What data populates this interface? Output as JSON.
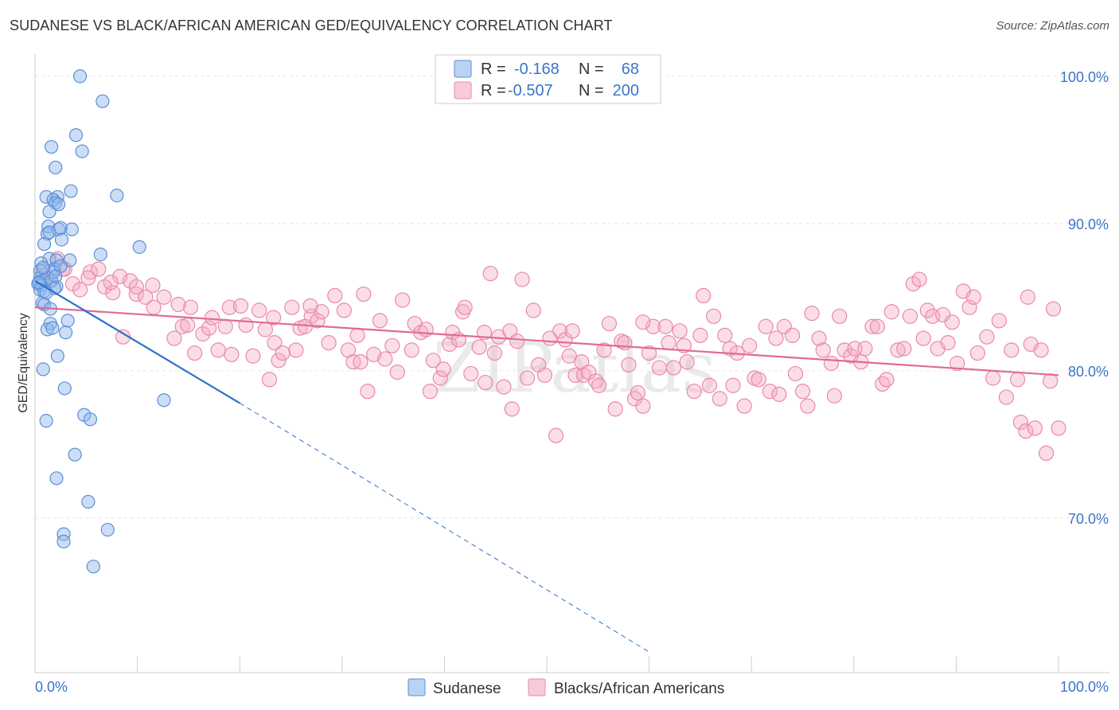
{
  "header": {
    "title": "SUDANESE VS BLACK/AFRICAN AMERICAN GED/EQUIVALENCY CORRELATION CHART",
    "source": "Source: ZipAtlas.com"
  },
  "colors": {
    "sudanese": "#8db6ea",
    "sudanese_stroke": "#5b8fd6",
    "sudanese_line": "#2f6fcc",
    "black": "#f4a9c2",
    "black_stroke": "#e88aa8",
    "black_line": "#e06b94",
    "tick": "#3b74c8",
    "grid": "#e5e5e5"
  },
  "watermark": "ZIPatlas",
  "chart_data": {
    "type": "scatter",
    "title": "SUDANESE VS BLACK/AFRICAN AMERICAN GED/EQUIVALENCY CORRELATION CHART",
    "xlabel": "",
    "ylabel": "GED/Equivalency",
    "xlim": [
      0,
      100
    ],
    "ylim": [
      59.5,
      101.5
    ],
    "x_tick_labels": [
      "0.0%",
      "100.0%"
    ],
    "y_ticks": [
      70,
      80,
      90,
      100
    ],
    "y_tick_labels": [
      "70.0%",
      "80.0%",
      "90.0%",
      "100.0%"
    ],
    "grid": true,
    "legend_position": "top-center",
    "legend": [
      {
        "r_label": "R =",
        "r_value": "-0.168",
        "n_label": "N =",
        "n_value": "68"
      },
      {
        "r_label": "R =",
        "r_value": "-0.507",
        "n_label": "N =",
        "n_value": "200"
      }
    ],
    "series": [
      {
        "name": "Sudanese",
        "trend": {
          "x": [
            0,
            20
          ],
          "y": [
            86.1,
            77.8
          ],
          "dashed_to": [
            60,
            60.9
          ]
        },
        "points": [
          [
            4.4,
            100
          ],
          [
            6.6,
            98.3
          ],
          [
            4,
            96
          ],
          [
            1.6,
            95.2
          ],
          [
            4.6,
            94.9
          ],
          [
            2,
            93.8
          ],
          [
            8,
            91.9
          ],
          [
            3.5,
            92.2
          ],
          [
            1.1,
            91.8
          ],
          [
            2.2,
            91.8
          ],
          [
            1.8,
            91.6
          ],
          [
            2,
            91.4
          ],
          [
            2.3,
            91.3
          ],
          [
            1.4,
            90.8
          ],
          [
            1.3,
            89.8
          ],
          [
            3.6,
            89.6
          ],
          [
            2.3,
            89.6
          ],
          [
            1.2,
            89.3
          ],
          [
            1.4,
            89.4
          ],
          [
            2.5,
            89.7
          ],
          [
            2.6,
            88.9
          ],
          [
            0.9,
            88.6
          ],
          [
            10.2,
            88.4
          ],
          [
            6.4,
            87.9
          ],
          [
            1.4,
            87.6
          ],
          [
            2.1,
            87.5
          ],
          [
            3.4,
            87.5
          ],
          [
            0.6,
            87.3
          ],
          [
            0.5,
            86.8
          ],
          [
            1.9,
            86.9
          ],
          [
            0.5,
            86.3
          ],
          [
            0.7,
            86.1
          ],
          [
            1.2,
            86.3
          ],
          [
            1.6,
            86.1
          ],
          [
            0.3,
            85.9
          ],
          [
            0.6,
            85.8
          ],
          [
            2.1,
            85.7
          ],
          [
            0.5,
            85.5
          ],
          [
            1.9,
            85.6
          ],
          [
            0.7,
            84.6
          ],
          [
            0.9,
            84.5
          ],
          [
            1.5,
            84.2
          ],
          [
            3.2,
            83.4
          ],
          [
            1.5,
            83.2
          ],
          [
            1.2,
            82.8
          ],
          [
            1.7,
            82.9
          ],
          [
            3,
            82.6
          ],
          [
            2.2,
            81
          ],
          [
            0.8,
            80.1
          ],
          [
            12.6,
            78
          ],
          [
            2.9,
            78.8
          ],
          [
            4.8,
            77
          ],
          [
            5.4,
            76.7
          ],
          [
            1.1,
            76.6
          ],
          [
            3.9,
            74.3
          ],
          [
            2.1,
            72.7
          ],
          [
            5.2,
            71.1
          ],
          [
            7.1,
            69.2
          ],
          [
            2.8,
            68.9
          ],
          [
            2.8,
            68.4
          ],
          [
            5.7,
            66.7
          ],
          [
            0.9,
            85.4
          ],
          [
            1.8,
            86.7
          ],
          [
            2.5,
            87.1
          ],
          [
            0.4,
            86.0
          ],
          [
            1.1,
            85.3
          ],
          [
            2.0,
            86.4
          ],
          [
            0.8,
            87.0
          ]
        ]
      },
      {
        "name": "Blacks/African Americans",
        "trend": {
          "x": [
            0,
            100
          ],
          "y": [
            84.3,
            79.7
          ]
        },
        "points": [
          [
            0.8,
            86.8
          ],
          [
            1.5,
            86.2
          ],
          [
            2.2,
            87.6
          ],
          [
            2.9,
            86.9
          ],
          [
            3.7,
            85.9
          ],
          [
            4.4,
            85.5
          ],
          [
            5.4,
            86.7
          ],
          [
            6.2,
            86.9
          ],
          [
            6.8,
            85.7
          ],
          [
            7.6,
            85.3
          ],
          [
            8.3,
            86.4
          ],
          [
            8.6,
            82.3
          ],
          [
            9.3,
            86.1
          ],
          [
            9.9,
            85.2
          ],
          [
            10.8,
            85.0
          ],
          [
            11.6,
            84.3
          ],
          [
            11.5,
            85.8
          ],
          [
            12.6,
            85.0
          ],
          [
            13.6,
            82.2
          ],
          [
            14.4,
            83.0
          ],
          [
            14.9,
            83.1
          ],
          [
            15.2,
            84.3
          ],
          [
            15.6,
            81.2
          ],
          [
            16.4,
            82.5
          ],
          [
            17.0,
            82.9
          ],
          [
            17.3,
            83.6
          ],
          [
            17.9,
            81.4
          ],
          [
            18.6,
            83.0
          ],
          [
            19.0,
            84.3
          ],
          [
            19.2,
            81.1
          ],
          [
            20.1,
            84.4
          ],
          [
            20.6,
            83.1
          ],
          [
            21.3,
            81.0
          ],
          [
            21.9,
            84.1
          ],
          [
            22.5,
            82.8
          ],
          [
            22.9,
            79.4
          ],
          [
            23.4,
            81.9
          ],
          [
            23.8,
            80.7
          ],
          [
            24.2,
            81.2
          ],
          [
            25.1,
            84.3
          ],
          [
            25.5,
            81.4
          ],
          [
            25.9,
            82.9
          ],
          [
            26.4,
            83.0
          ],
          [
            27.0,
            83.7
          ],
          [
            27.6,
            83.4
          ],
          [
            28.0,
            84.0
          ],
          [
            28.7,
            81.9
          ],
          [
            29.3,
            85.1
          ],
          [
            30.2,
            84.1
          ],
          [
            30.6,
            81.4
          ],
          [
            31.1,
            80.6
          ],
          [
            31.8,
            80.6
          ],
          [
            32.1,
            85.2
          ],
          [
            32.5,
            78.6
          ],
          [
            33.1,
            81.1
          ],
          [
            33.7,
            83.4
          ],
          [
            34.2,
            80.8
          ],
          [
            34.9,
            81.7
          ],
          [
            35.4,
            79.9
          ],
          [
            35.9,
            84.8
          ],
          [
            36.8,
            81.4
          ],
          [
            37.1,
            83.2
          ],
          [
            37.7,
            82.6
          ],
          [
            38.2,
            82.8
          ],
          [
            38.6,
            78.6
          ],
          [
            38.9,
            80.7
          ],
          [
            39.6,
            79.5
          ],
          [
            39.9,
            80.1
          ],
          [
            40.5,
            81.8
          ],
          [
            40.8,
            82.6
          ],
          [
            41.4,
            82.1
          ],
          [
            41.8,
            84.0
          ],
          [
            42.0,
            84.3
          ],
          [
            42.6,
            79.8
          ],
          [
            43.4,
            81.6
          ],
          [
            43.9,
            82.6
          ],
          [
            44.0,
            79.2
          ],
          [
            44.5,
            86.6
          ],
          [
            44.9,
            81.2
          ],
          [
            45.3,
            82.3
          ],
          [
            45.8,
            78.9
          ],
          [
            46.4,
            82.7
          ],
          [
            46.6,
            77.4
          ],
          [
            47.1,
            82.0
          ],
          [
            47.6,
            86.2
          ],
          [
            48.1,
            79.5
          ],
          [
            48.7,
            84.1
          ],
          [
            49.2,
            80.4
          ],
          [
            49.8,
            79.7
          ],
          [
            50.3,
            82.2
          ],
          [
            50.9,
            75.6
          ],
          [
            51.3,
            82.7
          ],
          [
            51.8,
            82.1
          ],
          [
            52.2,
            81.0
          ],
          [
            52.8,
            79.7
          ],
          [
            53.4,
            80.6
          ],
          [
            53.6,
            79.7
          ],
          [
            54.1,
            79.9
          ],
          [
            54.8,
            79.3
          ],
          [
            55.1,
            79.0
          ],
          [
            55.6,
            81.4
          ],
          [
            56.1,
            83.2
          ],
          [
            56.7,
            77.4
          ],
          [
            57.3,
            82.0
          ],
          [
            57.6,
            81.9
          ],
          [
            58.0,
            80.4
          ],
          [
            58.6,
            78.1
          ],
          [
            58.9,
            78.5
          ],
          [
            59.4,
            77.6
          ],
          [
            60.0,
            81.2
          ],
          [
            60.4,
            83.0
          ],
          [
            61.0,
            80.2
          ],
          [
            61.6,
            83.0
          ],
          [
            61.9,
            81.9
          ],
          [
            62.4,
            80.2
          ],
          [
            63.0,
            82.7
          ],
          [
            63.4,
            81.7
          ],
          [
            63.7,
            80.6
          ],
          [
            64.4,
            78.6
          ],
          [
            65.0,
            82.4
          ],
          [
            65.3,
            85.1
          ],
          [
            65.9,
            79.0
          ],
          [
            66.3,
            83.7
          ],
          [
            66.9,
            78.1
          ],
          [
            67.4,
            82.4
          ],
          [
            67.9,
            81.5
          ],
          [
            68.2,
            79.0
          ],
          [
            68.6,
            81.2
          ],
          [
            69.3,
            77.6
          ],
          [
            69.8,
            81.7
          ],
          [
            70.3,
            79.5
          ],
          [
            70.7,
            79.4
          ],
          [
            71.4,
            83.0
          ],
          [
            71.8,
            78.6
          ],
          [
            72.4,
            82.2
          ],
          [
            72.7,
            78.4
          ],
          [
            73.2,
            83.0
          ],
          [
            74.0,
            82.4
          ],
          [
            74.3,
            79.8
          ],
          [
            75.0,
            78.6
          ],
          [
            75.5,
            77.6
          ],
          [
            75.9,
            83.9
          ],
          [
            76.6,
            82.2
          ],
          [
            77.0,
            81.4
          ],
          [
            77.8,
            80.5
          ],
          [
            78.1,
            78.3
          ],
          [
            78.6,
            83.7
          ],
          [
            79.1,
            81.4
          ],
          [
            79.7,
            81.0
          ],
          [
            80.1,
            81.5
          ],
          [
            80.7,
            80.6
          ],
          [
            81.1,
            81.5
          ],
          [
            81.8,
            83.0
          ],
          [
            82.3,
            83.0
          ],
          [
            82.8,
            79.1
          ],
          [
            83.2,
            79.4
          ],
          [
            83.7,
            84.0
          ],
          [
            84.3,
            81.4
          ],
          [
            84.9,
            81.5
          ],
          [
            85.5,
            83.7
          ],
          [
            85.8,
            85.9
          ],
          [
            86.4,
            86.2
          ],
          [
            86.8,
            82.2
          ],
          [
            87.2,
            84.1
          ],
          [
            87.7,
            83.7
          ],
          [
            88.2,
            81.5
          ],
          [
            88.7,
            83.8
          ],
          [
            89.2,
            81.9
          ],
          [
            89.6,
            83.3
          ],
          [
            90.1,
            80.5
          ],
          [
            90.7,
            85.4
          ],
          [
            91.3,
            84.3
          ],
          [
            91.7,
            85.0
          ],
          [
            92.1,
            81.2
          ],
          [
            93.0,
            82.3
          ],
          [
            93.6,
            79.5
          ],
          [
            94.2,
            83.4
          ],
          [
            94.9,
            78.2
          ],
          [
            95.4,
            81.4
          ],
          [
            96.0,
            79.4
          ],
          [
            96.3,
            76.5
          ],
          [
            96.8,
            75.9
          ],
          [
            97.3,
            81.8
          ],
          [
            97.7,
            76.1
          ],
          [
            98.3,
            81.4
          ],
          [
            98.8,
            74.4
          ],
          [
            99.2,
            79.3
          ],
          [
            99.5,
            84.2
          ],
          [
            100.0,
            76.1
          ],
          [
            97.0,
            85.0
          ],
          [
            2.7,
            86.9
          ],
          [
            5.2,
            86.3
          ],
          [
            7.4,
            86.0
          ],
          [
            9.9,
            85.7
          ],
          [
            14.0,
            84.5
          ],
          [
            23.3,
            83.6
          ],
          [
            26.9,
            84.4
          ],
          [
            31.5,
            82.4
          ],
          [
            52.5,
            82.7
          ],
          [
            59.4,
            83.3
          ]
        ]
      }
    ]
  },
  "bottom_legend": [
    {
      "label": "Sudanese"
    },
    {
      "label": "Blacks/African Americans"
    }
  ]
}
